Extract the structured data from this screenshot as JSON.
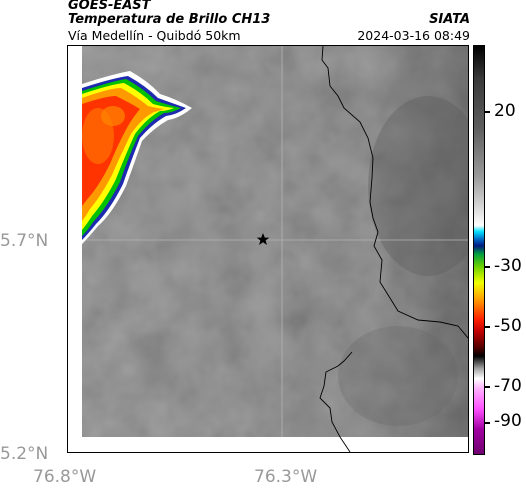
{
  "header": {
    "satellite": "GOES-EAST",
    "product": "Temperatura de Brillo CH13",
    "route": "Vía Medellín - Quibdó 50km",
    "source": "SIATA",
    "timestamp": "2024-03-16 08:49"
  },
  "axes": {
    "lat_labels": [
      "5.7°N",
      "5.2°N"
    ],
    "lon_labels": [
      "76.8°W",
      "76.3°W"
    ]
  },
  "colorbar": {
    "labels": [
      "20",
      "-30",
      "-50",
      "-70",
      "-90"
    ]
  },
  "colors": {
    "background_gray": "#7e7e7e",
    "cold_red": "#ff3300",
    "cold_yellow": "#ffff00",
    "cold_green": "#00c000",
    "cold_blue": "#1e2ab0"
  }
}
